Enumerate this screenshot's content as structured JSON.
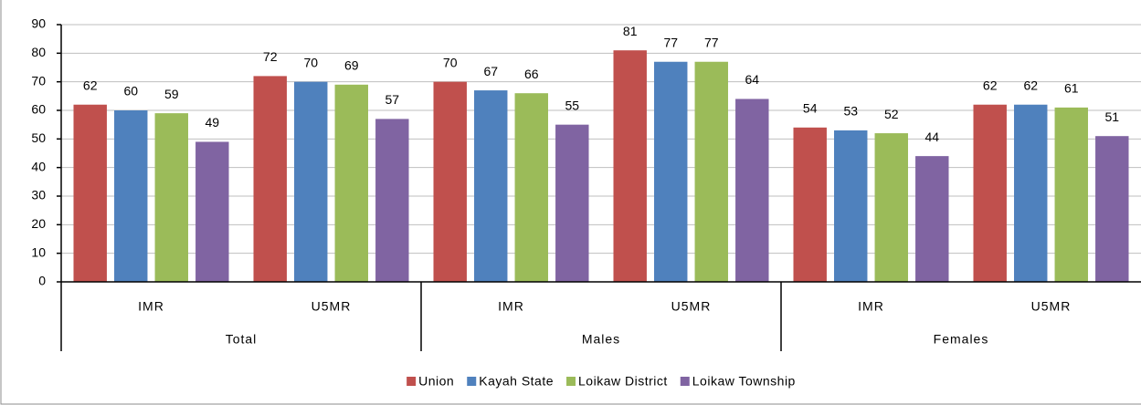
{
  "chart_data": {
    "type": "bar",
    "categories": [
      "IMR",
      "U5MR",
      "IMR",
      "U5MR",
      "IMR",
      "U5MR"
    ],
    "group_labels": [
      "Total",
      "Males",
      "Females"
    ],
    "series": [
      {
        "name": "Union",
        "color": "#c0504d",
        "values": [
          62,
          72,
          70,
          81,
          54,
          62
        ]
      },
      {
        "name": "Kayah State",
        "color": "#4f81bd",
        "values": [
          60,
          70,
          67,
          77,
          53,
          62
        ]
      },
      {
        "name": "Loikaw District",
        "color": "#9bbb59",
        "values": [
          59,
          69,
          66,
          77,
          52,
          61
        ]
      },
      {
        "name": "Loikaw Township",
        "color": "#8064a2",
        "values": [
          49,
          57,
          55,
          64,
          44,
          51
        ]
      }
    ],
    "ylim": [
      0,
      90
    ],
    "yticks": [
      0,
      10,
      20,
      30,
      40,
      50,
      60,
      70,
      80,
      90
    ],
    "grid": true,
    "legend": "bottom"
  }
}
